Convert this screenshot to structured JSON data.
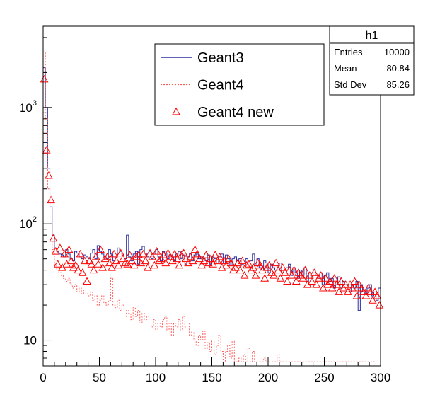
{
  "chart_data": {
    "type": "line",
    "title": "",
    "xlabel": "",
    "ylabel": "",
    "yscale": "log",
    "xlim": [
      0,
      300
    ],
    "ylim": [
      6,
      5000
    ],
    "bin_width": 2,
    "x_ticks": [
      "0",
      "50",
      "100",
      "150",
      "200",
      "250",
      "300"
    ],
    "y_ticks": [
      {
        "base": "10",
        "exp": "",
        "value": 10
      },
      {
        "base": "10",
        "exp": "2",
        "value": 100
      },
      {
        "base": "10",
        "exp": "3",
        "value": 1000
      }
    ],
    "legend": {
      "placement": "top-center",
      "entries": [
        {
          "label": "Geant3",
          "style": "solid-line",
          "color": "#2b2fa0"
        },
        {
          "label": "Geant4",
          "style": "dotted-line",
          "color": "#ff5a5a"
        },
        {
          "label": "Geant4 new",
          "style": "triangle-marker",
          "color": "#ff0000"
        }
      ]
    },
    "stats": {
      "title": "h1",
      "rows": [
        {
          "label": "Entries",
          "value": "10000"
        },
        {
          "label": "Mean",
          "value": "80.84"
        },
        {
          "label": "Std Dev",
          "value": "85.26"
        }
      ]
    },
    "series": [
      {
        "name": "Geant3",
        "style": "step",
        "color": "#2b2fa0",
        "values": [
          2200,
          1000,
          300,
          140,
          80,
          62,
          58,
          55,
          54,
          52,
          60,
          55,
          50,
          48,
          58,
          56,
          52,
          50,
          54,
          52,
          50,
          56,
          60,
          50,
          65,
          58,
          55,
          52,
          50,
          60,
          55,
          48,
          52,
          62,
          58,
          54,
          50,
          80,
          52,
          48,
          55,
          58,
          45,
          60,
          64,
          56,
          52,
          58,
          50,
          55,
          60,
          52,
          48,
          58,
          56,
          50,
          54,
          52,
          48,
          55,
          58,
          50,
          54,
          45,
          52,
          56,
          48,
          54,
          55,
          50,
          52,
          50,
          48,
          54,
          45,
          52,
          50,
          46,
          52,
          55,
          46,
          54,
          50,
          44,
          50,
          52,
          48,
          50,
          45,
          44,
          50,
          46,
          48,
          55,
          44,
          50,
          42,
          40,
          48,
          46,
          38,
          45,
          42,
          40,
          44,
          46,
          38,
          40,
          42,
          45,
          36,
          42,
          38,
          34,
          40,
          36,
          42,
          32,
          38,
          35,
          40,
          36,
          34,
          38,
          30,
          36,
          38,
          32,
          34,
          28,
          30,
          35,
          28,
          32,
          30,
          30,
          26,
          30,
          28,
          32,
          18,
          30,
          26,
          25,
          28,
          30,
          24,
          26,
          22,
          28
        ]
      },
      {
        "name": "Geant4",
        "style": "dotted-step",
        "color": "#ff5a5a",
        "values": [
          3000,
          800,
          200,
          100,
          60,
          45,
          40,
          38,
          36,
          34,
          32,
          34,
          30,
          28,
          30,
          26,
          28,
          25,
          27,
          25,
          24,
          26,
          22,
          24,
          20,
          22,
          24,
          21,
          20,
          22,
          34,
          20,
          19,
          22,
          18,
          20,
          16,
          18,
          17,
          15,
          19,
          16,
          18,
          14,
          17,
          15,
          16,
          14,
          13,
          15,
          12,
          14,
          13,
          15,
          16,
          12,
          14,
          11,
          14,
          13,
          15,
          12,
          16,
          13,
          14,
          11,
          12,
          10,
          9,
          11,
          10,
          12,
          8.5,
          9.5,
          8,
          10,
          7.5,
          9,
          11,
          8,
          6.5,
          8,
          9,
          7,
          10,
          6.5,
          6.5,
          7,
          6.5,
          7.5,
          6.5,
          8.5,
          6.5,
          8,
          6.5,
          6.5,
          6.5,
          6.5,
          7,
          6.5,
          6.5,
          6.5,
          6.5,
          6.5,
          7.5,
          6.5,
          6.5,
          6.5,
          6.5,
          6.5,
          6.5,
          6.5,
          6.5,
          6.5,
          6.5,
          6.5,
          6.5,
          6.5,
          6.5,
          6.5,
          6.5,
          6.5,
          6.5,
          6.5,
          6.5,
          6.5,
          6.5,
          6.5,
          6.5,
          6.5,
          6.5,
          6.5,
          6.5,
          6.5,
          6.5,
          6.5,
          6.5,
          6.5,
          6.5,
          6.5,
          6.5,
          6.5,
          6.5,
          6.5,
          6.5,
          6.5,
          6.5,
          6.5
        ]
      },
      {
        "name": "Geant4 new",
        "style": "markers",
        "color": "#ff0000",
        "x": [
          1,
          3,
          5,
          7,
          9,
          11,
          13,
          15,
          17,
          19,
          21,
          23,
          25,
          27,
          29,
          31,
          33,
          35,
          37,
          39,
          41,
          43,
          45,
          47,
          49,
          51,
          53,
          55,
          57,
          59,
          61,
          63,
          65,
          67,
          69,
          71,
          73,
          75,
          77,
          79,
          81,
          83,
          85,
          87,
          89,
          91,
          93,
          95,
          97,
          99,
          101,
          103,
          105,
          107,
          109,
          111,
          113,
          115,
          117,
          119,
          121,
          123,
          125,
          127,
          129,
          131,
          133,
          135,
          137,
          139,
          141,
          143,
          145,
          147,
          149,
          151,
          153,
          155,
          157,
          159,
          161,
          163,
          165,
          167,
          169,
          171,
          173,
          175,
          177,
          179,
          181,
          183,
          185,
          187,
          189,
          191,
          193,
          195,
          197,
          199,
          201,
          203,
          205,
          207,
          209,
          211,
          213,
          215,
          217,
          219,
          221,
          223,
          225,
          227,
          229,
          231,
          233,
          235,
          237,
          239,
          241,
          243,
          245,
          247,
          249,
          251,
          253,
          255,
          257,
          259,
          261,
          263,
          265,
          267,
          269,
          271,
          273,
          275,
          277,
          279,
          281,
          283,
          285,
          287,
          289,
          291,
          293,
          295,
          297,
          299
        ],
        "values": [
          1750,
          430,
          260,
          160,
          75,
          58,
          45,
          62,
          42,
          55,
          45,
          60,
          48,
          42,
          44,
          40,
          55,
          38,
          48,
          32,
          48,
          45,
          40,
          52,
          45,
          60,
          42,
          50,
          52,
          46,
          42,
          55,
          48,
          44,
          56,
          50,
          46,
          45,
          54,
          48,
          44,
          52,
          54,
          46,
          55,
          48,
          42,
          56,
          52,
          44,
          58,
          48,
          50,
          54,
          46,
          56,
          52,
          48,
          55,
          50,
          44,
          54,
          56,
          50,
          46,
          52,
          48,
          60,
          55,
          50,
          44,
          48,
          54,
          46,
          50,
          45,
          54,
          48,
          52,
          42,
          48,
          44,
          50,
          46,
          40,
          42,
          46,
          40,
          48,
          36,
          44,
          45,
          40,
          42,
          36,
          46,
          44,
          40,
          34,
          42,
          44,
          38,
          36,
          46,
          40,
          34,
          42,
          38,
          32,
          40,
          36,
          40,
          32,
          38,
          36,
          34,
          40,
          30,
          36,
          32,
          38,
          30,
          34,
          36,
          28,
          34,
          30,
          32,
          28,
          34,
          30,
          26,
          32,
          28,
          30,
          26,
          30,
          28,
          32,
          24,
          30,
          28,
          26,
          24,
          28,
          26,
          22,
          26,
          24,
          20
        ]
      }
    ]
  }
}
